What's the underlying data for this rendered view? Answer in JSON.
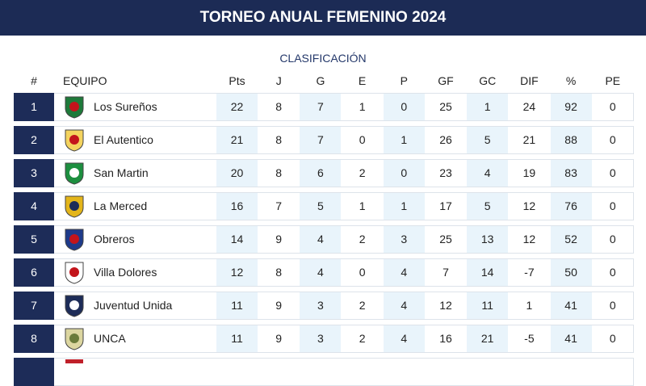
{
  "header": {
    "title": "TORNEO ANUAL FEMENINO 2024"
  },
  "table": {
    "caption": "CLASIFICACIÓN",
    "columns": [
      "#",
      "EQUIPO",
      "Pts",
      "J",
      "G",
      "E",
      "P",
      "GF",
      "GC",
      "DIF",
      "%",
      "PE"
    ],
    "rows": [
      [
        1,
        "Los Sureños",
        22,
        8,
        7,
        1,
        0,
        25,
        1,
        24,
        92,
        0
      ],
      [
        2,
        "El Autentico",
        21,
        8,
        7,
        0,
        1,
        26,
        5,
        21,
        88,
        0
      ],
      [
        3,
        "San Martin",
        20,
        8,
        6,
        2,
        0,
        23,
        4,
        19,
        83,
        0
      ],
      [
        4,
        "La Merced",
        16,
        7,
        5,
        1,
        1,
        17,
        5,
        12,
        76,
        0
      ],
      [
        5,
        "Obreros",
        14,
        9,
        4,
        2,
        3,
        25,
        13,
        12,
        52,
        0
      ],
      [
        6,
        "Villa Dolores",
        12,
        8,
        4,
        0,
        4,
        7,
        14,
        -7,
        50,
        0
      ],
      [
        7,
        "Juventud Unida",
        11,
        9,
        3,
        2,
        4,
        12,
        11,
        1,
        41,
        0
      ],
      [
        8,
        "UNCA",
        11,
        9,
        3,
        2,
        4,
        16,
        21,
        -5,
        41,
        0
      ]
    ]
  }
}
